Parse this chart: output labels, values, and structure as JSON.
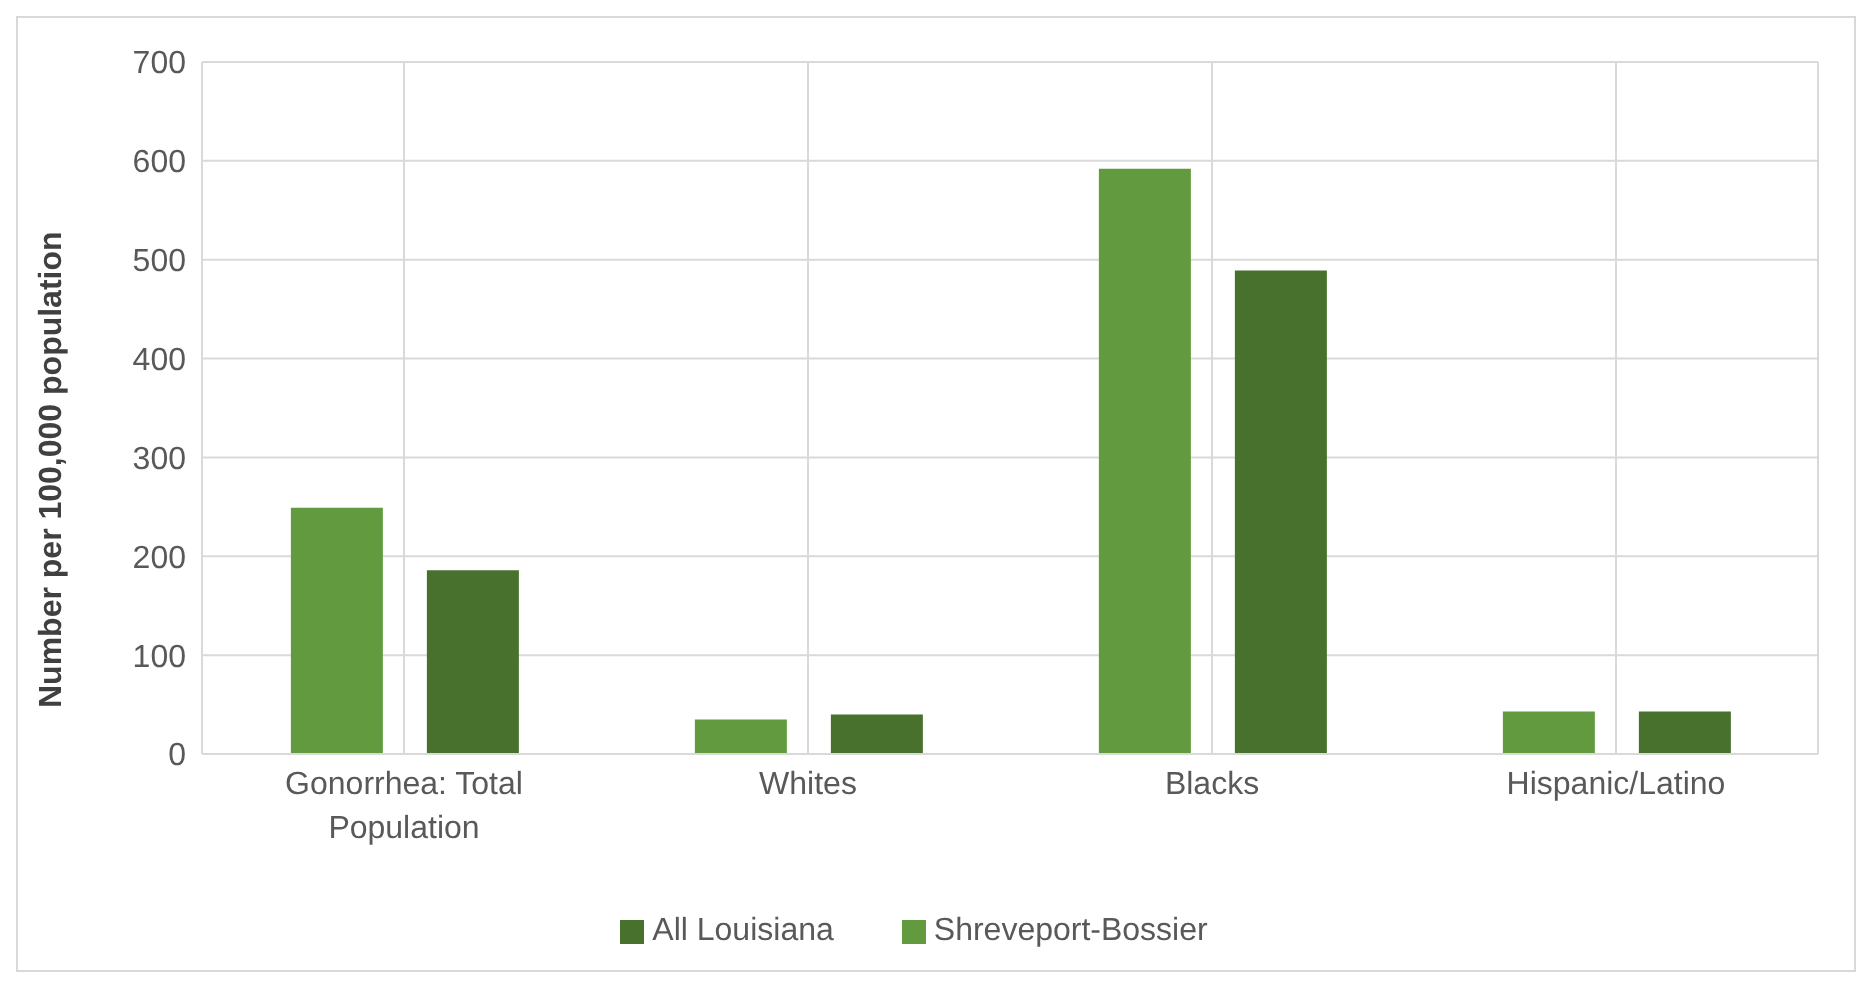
{
  "chart_data": {
    "type": "bar",
    "ylabel": "Number per 100,000 population",
    "categories": [
      "Gonorrhea: Total Population",
      "Whites",
      "Blacks",
      "Hispanic/Latino"
    ],
    "series": [
      {
        "name": "Shreveport-Bossier",
        "color": "#629b3f",
        "values": [
          249,
          35,
          592,
          43
        ]
      },
      {
        "name": "All Louisiana",
        "color": "#49712e",
        "values": [
          186,
          40,
          489,
          43
        ]
      }
    ],
    "ylim": [
      0,
      700
    ],
    "yticks": [
      0,
      100,
      200,
      300,
      400,
      500,
      600,
      700
    ],
    "grid": true,
    "legend": "bottom"
  }
}
